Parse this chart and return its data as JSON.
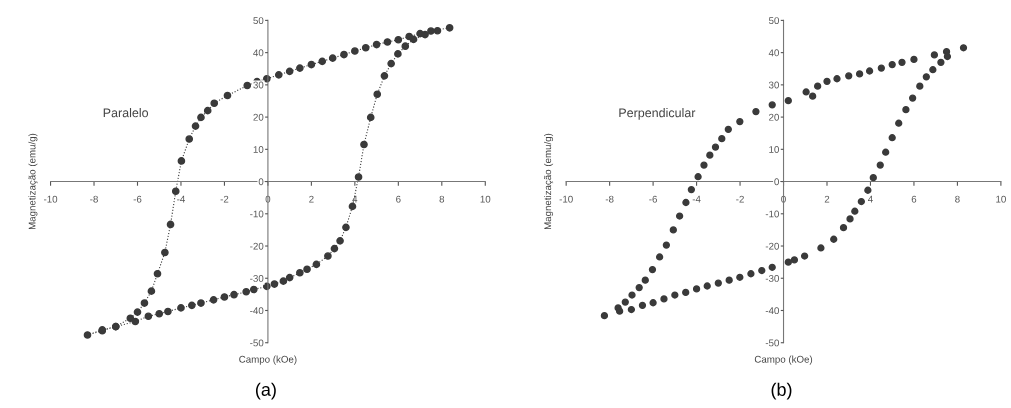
{
  "chart_data": [
    {
      "type": "line",
      "xlabel": "Campo (kOe)",
      "ylabel": "Magnetização (emu/g)",
      "annotations": [
        "Paralelo",
        "(a)"
      ],
      "xlim": [
        -10,
        10
      ],
      "ylim": [
        -50,
        50
      ],
      "xticks": [
        -10,
        -8,
        -6,
        -4,
        -2,
        0,
        2,
        4,
        6,
        8,
        10
      ],
      "yticks": [
        -50,
        -40,
        -30,
        -20,
        -10,
        0,
        10,
        20,
        30,
        40,
        50
      ],
      "grid": false,
      "marker": "circle",
      "line_style": "dotted",
      "series": [
        {
          "color": "#3a3a3a",
          "x": [
            8.36,
            7.5,
            7.0,
            6.5,
            6.0,
            5.5,
            5.0,
            4.5,
            4.0,
            3.5,
            2.98,
            2.5,
            2.0,
            1.47,
            1.0,
            0.5,
            -0.05,
            -0.5,
            -0.95,
            -1.86,
            -2.47,
            -2.77,
            -3.08,
            -3.33,
            -3.62,
            -3.98,
            -4.24,
            -4.48,
            -4.74,
            -5.08,
            -5.36,
            -5.68,
            -6.0,
            -6.33,
            -7.0,
            -7.62,
            -8.3,
            -7.62,
            -7.0,
            -6.1,
            -5.5,
            -5.0,
            -4.6,
            -4.0,
            -3.5,
            -3.08,
            -2.5,
            -2.0,
            -1.56,
            -1.0,
            -0.65,
            -0.05,
            0.3,
            0.71,
            1.0,
            1.47,
            1.8,
            2.23,
            2.76,
            3.06,
            3.32,
            3.59,
            3.89,
            4.17,
            4.42,
            4.73,
            5.03,
            5.36,
            5.67,
            5.98,
            6.32,
            6.7,
            7.23,
            7.8
          ],
          "values": [
            47.7,
            46.7,
            45.9,
            45.0,
            44.0,
            43.3,
            42.5,
            41.5,
            40.5,
            39.4,
            38.3,
            37.3,
            36.3,
            35.2,
            34.2,
            33.1,
            31.9,
            31.0,
            29.8,
            26.7,
            24.3,
            22.0,
            19.9,
            17.2,
            13.2,
            6.4,
            -3.0,
            -13.3,
            -22.0,
            -28.6,
            -34.0,
            -37.7,
            -40.5,
            -42.4,
            -45.0,
            -46.3,
            -47.6,
            -46.0,
            -45.0,
            -43.4,
            -41.8,
            -41.0,
            -40.3,
            -39.2,
            -38.4,
            -37.7,
            -36.7,
            -35.8,
            -35.1,
            -34.2,
            -33.5,
            -32.5,
            -31.8,
            -30.9,
            -29.8,
            -28.3,
            -27.2,
            -25.7,
            -23.1,
            -20.8,
            -18.4,
            -14.2,
            -7.7,
            1.4,
            11.5,
            19.9,
            27.1,
            32.8,
            36.6,
            39.6,
            42.0,
            44.1,
            45.6,
            46.8
          ]
        }
      ]
    },
    {
      "type": "scatter",
      "xlabel": "Campo (kOe)",
      "ylabel": "Magnetização (emu/g)",
      "annotations": [
        "Perpendicular",
        "(b)"
      ],
      "xlim": [
        -10,
        10
      ],
      "ylim": [
        -50,
        50
      ],
      "xticks": [
        -10,
        -8,
        -6,
        -4,
        -2,
        0,
        2,
        4,
        6,
        8,
        10
      ],
      "yticks": [
        -50,
        -40,
        -30,
        -20,
        -10,
        0,
        10,
        20,
        30,
        40,
        50
      ],
      "grid": false,
      "marker": "circle",
      "series": [
        {
          "color": "#3a3a3a",
          "x": [
            8.28,
            7.5,
            6.94,
            6.0,
            5.45,
            5.0,
            4.5,
            3.96,
            3.5,
            3.0,
            2.46,
            2.0,
            1.57,
            1.34,
            1.04,
            0.22,
            -0.52,
            -1.27,
            -2.01,
            -2.54,
            -2.84,
            -3.13,
            -3.39,
            -3.66,
            -3.93,
            -4.24,
            -4.49,
            -4.78,
            -5.07,
            -5.39,
            -5.7,
            -6.03,
            -6.36,
            -6.64,
            -6.97,
            -7.28,
            -7.61,
            -8.24,
            -7.54,
            -7.0,
            -6.49,
            -6.0,
            -5.5,
            -5.0,
            -4.5,
            -4.0,
            -3.51,
            -3.0,
            -2.5,
            -2.01,
            -1.5,
            -1.0,
            -0.52,
            0.22,
            0.5,
            0.97,
            1.72,
            2.31,
            2.76,
            3.06,
            3.28,
            3.58,
            3.88,
            4.13,
            4.45,
            4.7,
            5.0,
            5.3,
            5.63,
            5.94,
            6.27,
            6.57,
            6.87,
            7.24,
            7.54
          ],
          "values": [
            41.5,
            40.3,
            39.3,
            37.9,
            37.0,
            36.3,
            35.2,
            34.3,
            33.4,
            32.8,
            31.9,
            31.1,
            29.6,
            26.5,
            27.8,
            25.1,
            23.8,
            21.7,
            18.6,
            16.2,
            13.3,
            10.7,
            8.2,
            5.1,
            1.5,
            -2.5,
            -6.5,
            -10.7,
            -15.0,
            -19.7,
            -23.4,
            -27.3,
            -30.6,
            -32.9,
            -35.2,
            -37.4,
            -39.2,
            -41.6,
            -40.2,
            -39.7,
            -38.4,
            -37.6,
            -36.4,
            -35.2,
            -34.4,
            -33.3,
            -32.4,
            -31.5,
            -30.6,
            -29.7,
            -28.6,
            -27.6,
            -26.6,
            -25.0,
            -24.3,
            -23.1,
            -20.6,
            -17.9,
            -14.3,
            -11.6,
            -9.2,
            -6.2,
            -2.7,
            1.2,
            5.1,
            9.1,
            13.6,
            18.1,
            22.3,
            25.9,
            29.6,
            32.5,
            34.7,
            37.0,
            38.8
          ]
        }
      ]
    }
  ]
}
